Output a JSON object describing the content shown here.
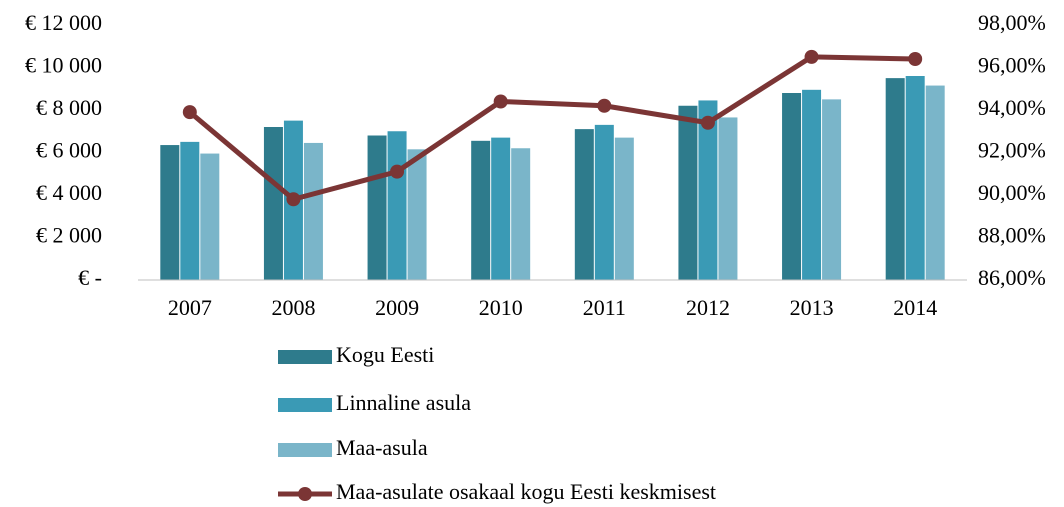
{
  "chart_data": {
    "type": "bar",
    "categories": [
      "2007",
      "2008",
      "2009",
      "2010",
      "2011",
      "2012",
      "2013",
      "2014"
    ],
    "series": [
      {
        "name": "Kogu Eesti",
        "type": "bar",
        "color": "#2e7b8c",
        "values": [
          6350,
          7200,
          6800,
          6550,
          7100,
          8200,
          8800,
          9500
        ]
      },
      {
        "name": "Linnaline asula",
        "type": "bar",
        "color": "#3a9ab5",
        "values": [
          6500,
          7500,
          7000,
          6700,
          7300,
          8450,
          8950,
          9600
        ]
      },
      {
        "name": "Maa-asula",
        "type": "bar",
        "color": "#7ab5c9",
        "values": [
          5950,
          6450,
          6150,
          6200,
          6700,
          7650,
          8500,
          9150
        ]
      },
      {
        "name": "Maa-asulate osakaal kogu Eesti keskmisest",
        "type": "line",
        "axis": "y2",
        "color": "#7b3535",
        "values": [
          93.9,
          89.8,
          91.1,
          94.4,
          94.2,
          93.4,
          96.5,
          96.4
        ]
      }
    ],
    "ylim": [
      0,
      12000
    ],
    "yticks": [
      {
        "value": 0,
        "label": "€ -"
      },
      {
        "value": 2000,
        "label": "€ 2 000"
      },
      {
        "value": 4000,
        "label": "€ 4 000"
      },
      {
        "value": 6000,
        "label": "€ 6 000"
      },
      {
        "value": 8000,
        "label": "€ 8 000"
      },
      {
        "value": 10000,
        "label": "€ 10 000"
      },
      {
        "value": 12000,
        "label": "€ 12 000"
      }
    ],
    "y2lim": [
      86,
      98
    ],
    "y2ticks": [
      {
        "value": 86,
        "label": "86,00%"
      },
      {
        "value": 88,
        "label": "88,00%"
      },
      {
        "value": 90,
        "label": "90,00%"
      },
      {
        "value": 92,
        "label": "92,00%"
      },
      {
        "value": 94,
        "label": "94,00%"
      },
      {
        "value": 96,
        "label": "96,00%"
      },
      {
        "value": 98,
        "label": "98,00%"
      }
    ],
    "legend": "bottom"
  }
}
